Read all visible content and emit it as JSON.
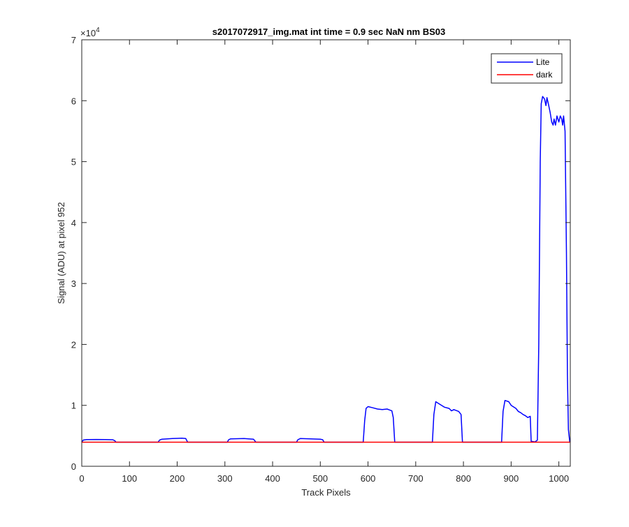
{
  "chart_data": {
    "type": "line",
    "title": "s2017072917_img.mat int time = 0.9 sec  NaN nm BS03",
    "xlabel": "Track Pixels",
    "ylabel": "Signal (ADU) at pixel 952",
    "xlim": [
      0,
      1024
    ],
    "ylim": [
      0,
      70000
    ],
    "x_ticks": [
      0,
      100,
      200,
      300,
      400,
      500,
      600,
      700,
      800,
      900,
      1000
    ],
    "y_ticks": [
      0,
      1,
      2,
      3,
      4,
      5,
      6,
      7
    ],
    "y_exponent_label": "×10",
    "y_exponent_power": "4",
    "grid": false,
    "legend_position": "top-right",
    "series": [
      {
        "name": "Lite",
        "color": "#0000ff",
        "points": [
          [
            0,
            3950
          ],
          [
            3,
            4300
          ],
          [
            10,
            4380
          ],
          [
            30,
            4400
          ],
          [
            50,
            4380
          ],
          [
            65,
            4350
          ],
          [
            69,
            4200
          ],
          [
            72,
            3950
          ],
          [
            160,
            3950
          ],
          [
            163,
            4300
          ],
          [
            168,
            4450
          ],
          [
            190,
            4550
          ],
          [
            210,
            4600
          ],
          [
            218,
            4550
          ],
          [
            222,
            3950
          ],
          [
            305,
            3950
          ],
          [
            308,
            4350
          ],
          [
            312,
            4500
          ],
          [
            340,
            4550
          ],
          [
            360,
            4450
          ],
          [
            365,
            3950
          ],
          [
            450,
            3950
          ],
          [
            453,
            4350
          ],
          [
            458,
            4550
          ],
          [
            480,
            4500
          ],
          [
            500,
            4450
          ],
          [
            505,
            4350
          ],
          [
            508,
            3950
          ],
          [
            590,
            3950
          ],
          [
            593,
            7500
          ],
          [
            596,
            9500
          ],
          [
            600,
            9800
          ],
          [
            610,
            9600
          ],
          [
            620,
            9400
          ],
          [
            630,
            9300
          ],
          [
            640,
            9400
          ],
          [
            645,
            9250
          ],
          [
            650,
            9100
          ],
          [
            653,
            8000
          ],
          [
            656,
            3950
          ],
          [
            735,
            3950
          ],
          [
            738,
            8500
          ],
          [
            742,
            10600
          ],
          [
            750,
            10200
          ],
          [
            760,
            9700
          ],
          [
            770,
            9500
          ],
          [
            775,
            9100
          ],
          [
            780,
            9300
          ],
          [
            790,
            9000
          ],
          [
            795,
            8500
          ],
          [
            798,
            3950
          ],
          [
            880,
            3950
          ],
          [
            883,
            9000
          ],
          [
            887,
            10800
          ],
          [
            895,
            10600
          ],
          [
            900,
            10000
          ],
          [
            910,
            9500
          ],
          [
            915,
            9000
          ],
          [
            920,
            8800
          ],
          [
            925,
            8500
          ],
          [
            930,
            8300
          ],
          [
            935,
            8000
          ],
          [
            940,
            8200
          ],
          [
            942,
            4100
          ],
          [
            950,
            4000
          ],
          [
            955,
            4300
          ],
          [
            958,
            20000
          ],
          [
            961,
            50000
          ],
          [
            963,
            59500
          ],
          [
            966,
            60700
          ],
          [
            970,
            60300
          ],
          [
            973,
            59200
          ],
          [
            975,
            60500
          ],
          [
            978,
            59500
          ],
          [
            982,
            58000
          ],
          [
            985,
            56500
          ],
          [
            988,
            56000
          ],
          [
            990,
            57000
          ],
          [
            993,
            56000
          ],
          [
            996,
            57500
          ],
          [
            1000,
            56500
          ],
          [
            1003,
            57500
          ],
          [
            1006,
            57000
          ],
          [
            1008,
            56000
          ],
          [
            1010,
            57500
          ],
          [
            1013,
            55000
          ],
          [
            1016,
            35000
          ],
          [
            1018,
            15000
          ],
          [
            1020,
            6000
          ],
          [
            1023,
            3950
          ]
        ]
      },
      {
        "name": "dark",
        "color": "#ff0000",
        "points": [
          [
            0,
            3950
          ],
          [
            1024,
            3950
          ]
        ]
      }
    ]
  }
}
